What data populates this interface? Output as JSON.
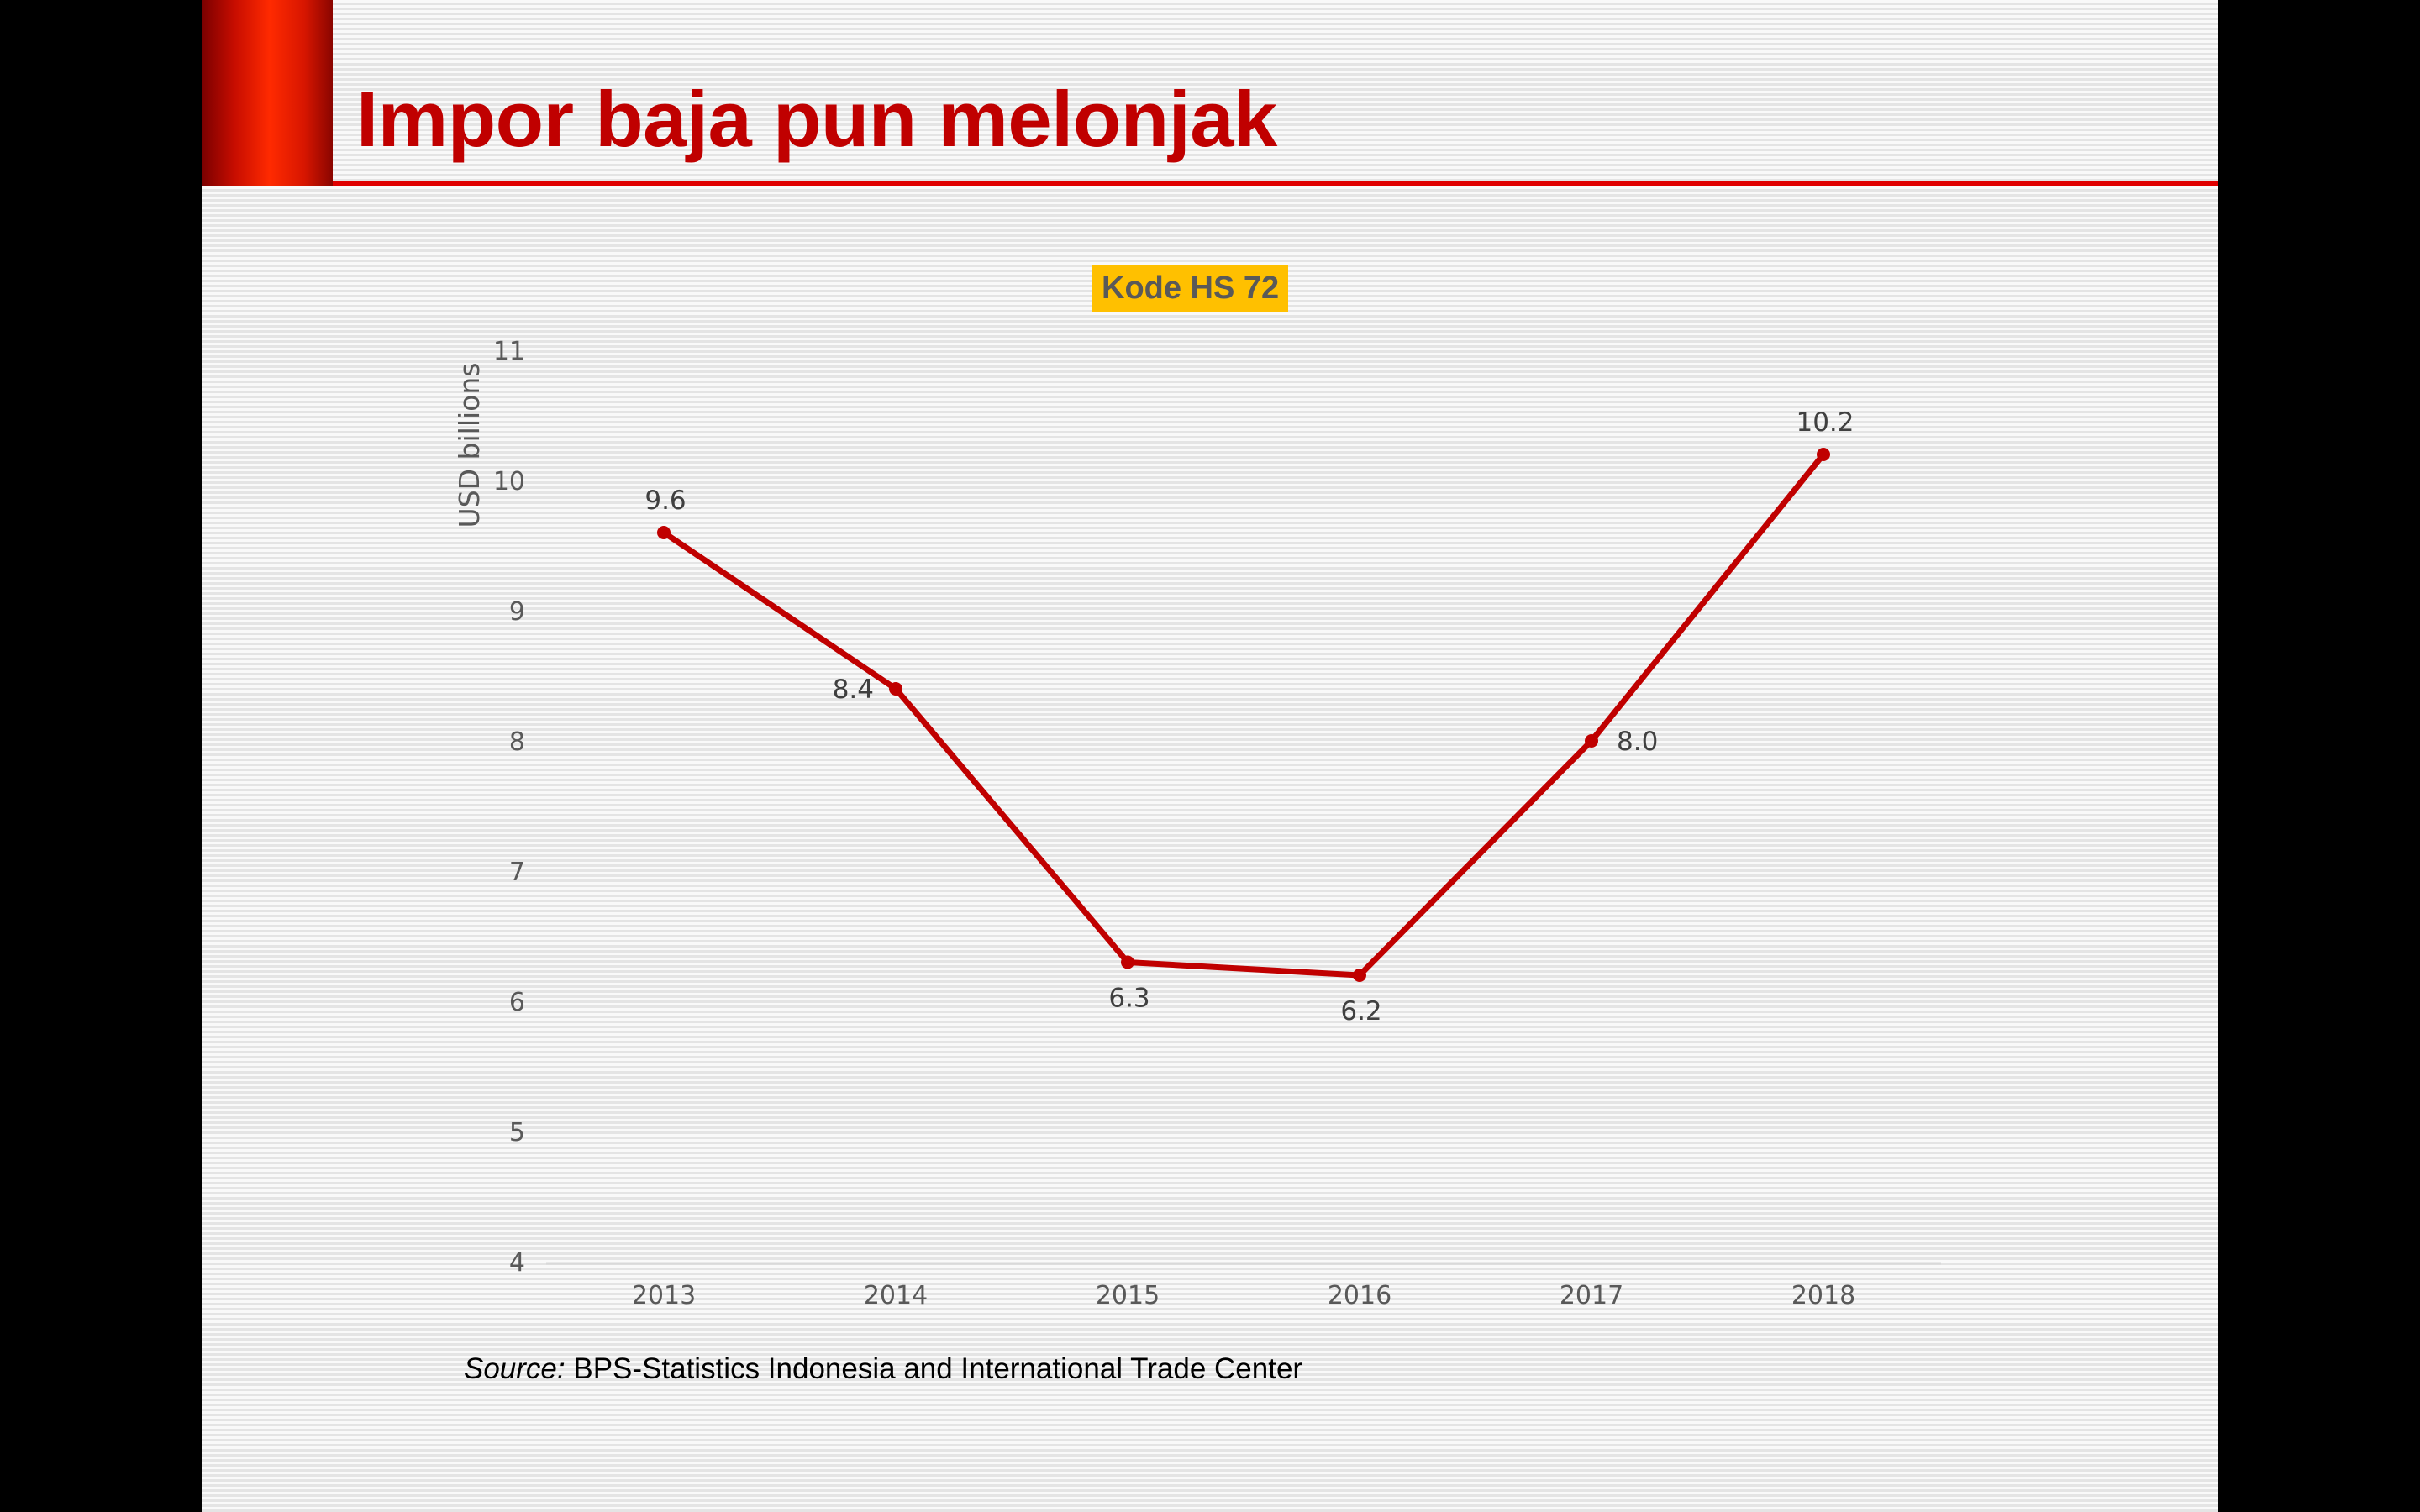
{
  "slide": {
    "title": "Impor baja pun melonjak",
    "source_label": "Source:",
    "source_text": " BPS-Statistics Indonesia and International Trade Center"
  },
  "chart_data": {
    "type": "line",
    "title": "Kode HS 72",
    "xlabel": "",
    "ylabel": "USD billions",
    "categories": [
      "2013",
      "2014",
      "2015",
      "2016",
      "2017",
      "2018"
    ],
    "series": [
      {
        "values": [
          9.6,
          8.4,
          6.3,
          6.2,
          8.0,
          10.2
        ],
        "color": "#c00000"
      }
    ],
    "data_labels": [
      "9.6",
      "8.4",
      "6.3",
      "6.2",
      "8.0",
      "10.2"
    ],
    "ylim": [
      4,
      11
    ],
    "yticks": [
      4,
      5,
      6,
      7,
      8,
      9,
      10,
      11
    ],
    "grid": false,
    "legend": "none"
  }
}
